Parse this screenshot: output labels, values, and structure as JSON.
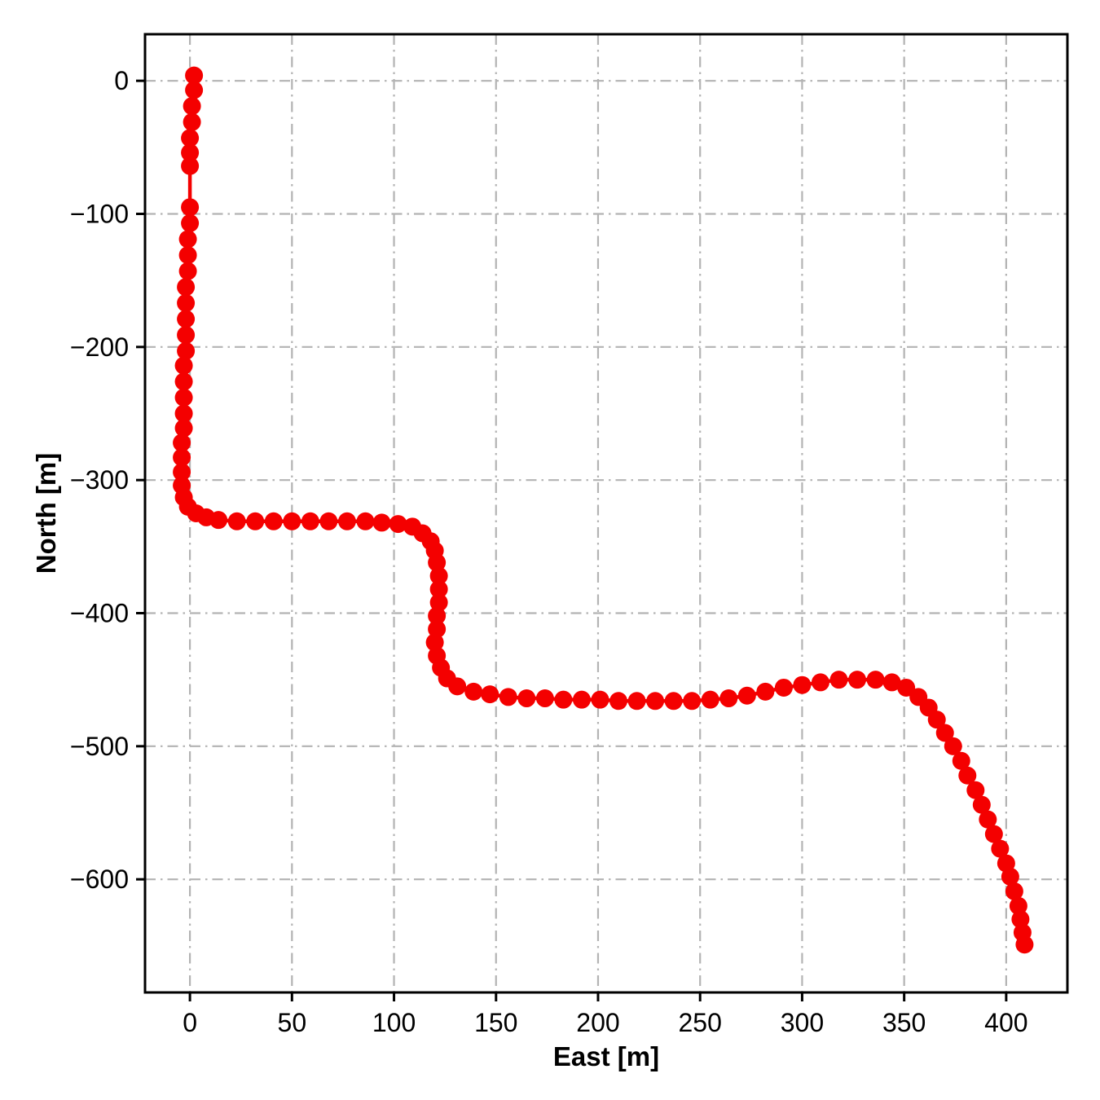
{
  "chart_data": {
    "type": "scatter",
    "title": "",
    "xlabel": "East [m]",
    "ylabel": "North [m]",
    "xlim": [
      -22,
      430
    ],
    "ylim": [
      -685,
      35
    ],
    "xticks": [
      0,
      50,
      100,
      150,
      200,
      250,
      300,
      350,
      400
    ],
    "yticks": [
      0,
      -100,
      -200,
      -300,
      -400,
      -500,
      -600
    ],
    "grid": true,
    "grid_style": "dashdot",
    "grid_color": "#b3b3b3",
    "marker_color": "#f40000",
    "line_color": "#f40000",
    "marker_radius": 11,
    "line_width": 4.5,
    "legend": "none",
    "points": [
      [
        2,
        4
      ],
      [
        2,
        -7
      ],
      [
        1,
        -19
      ],
      [
        1,
        -31
      ],
      [
        0,
        -43
      ],
      [
        0,
        -54
      ],
      [
        0,
        -64
      ],
      [
        0,
        -95
      ],
      [
        0,
        -107
      ],
      [
        -1,
        -119
      ],
      [
        -1,
        -131
      ],
      [
        -1,
        -143
      ],
      [
        -2,
        -155
      ],
      [
        -2,
        -167
      ],
      [
        -2,
        -179
      ],
      [
        -2,
        -191
      ],
      [
        -2,
        -203
      ],
      [
        -3,
        -214
      ],
      [
        -3,
        -226
      ],
      [
        -3,
        -238
      ],
      [
        -3,
        -250
      ],
      [
        -3,
        -261
      ],
      [
        -4,
        -272
      ],
      [
        -4,
        -283
      ],
      [
        -4,
        -294
      ],
      [
        -4,
        -304
      ],
      [
        -3,
        -313
      ],
      [
        -1,
        -320
      ],
      [
        3,
        -325
      ],
      [
        8,
        -328
      ],
      [
        14,
        -330
      ],
      [
        23,
        -331
      ],
      [
        32,
        -331
      ],
      [
        41,
        -331
      ],
      [
        50,
        -331
      ],
      [
        59,
        -331
      ],
      [
        68,
        -331
      ],
      [
        77,
        -331
      ],
      [
        86,
        -331
      ],
      [
        94,
        -332
      ],
      [
        102,
        -333
      ],
      [
        109,
        -335
      ],
      [
        114,
        -340
      ],
      [
        118,
        -346
      ],
      [
        120,
        -353
      ],
      [
        121,
        -362
      ],
      [
        122,
        -372
      ],
      [
        122,
        -382
      ],
      [
        122,
        -392
      ],
      [
        121,
        -402
      ],
      [
        121,
        -412
      ],
      [
        120,
        -422
      ],
      [
        121,
        -432
      ],
      [
        123,
        -441
      ],
      [
        126,
        -449
      ],
      [
        131,
        -455
      ],
      [
        139,
        -459
      ],
      [
        147,
        -461
      ],
      [
        156,
        -463
      ],
      [
        165,
        -464
      ],
      [
        174,
        -464
      ],
      [
        183,
        -465
      ],
      [
        192,
        -465
      ],
      [
        201,
        -465
      ],
      [
        210,
        -466
      ],
      [
        219,
        -466
      ],
      [
        228,
        -466
      ],
      [
        237,
        -466
      ],
      [
        246,
        -466
      ],
      [
        255,
        -465
      ],
      [
        264,
        -464
      ],
      [
        273,
        -462
      ],
      [
        282,
        -459
      ],
      [
        291,
        -456
      ],
      [
        300,
        -454
      ],
      [
        309,
        -452
      ],
      [
        318,
        -450
      ],
      [
        327,
        -450
      ],
      [
        336,
        -450
      ],
      [
        344,
        -452
      ],
      [
        351,
        -456
      ],
      [
        357,
        -463
      ],
      [
        362,
        -471
      ],
      [
        366,
        -480
      ],
      [
        370,
        -490
      ],
      [
        374,
        -500
      ],
      [
        378,
        -511
      ],
      [
        381,
        -522
      ],
      [
        385,
        -533
      ],
      [
        388,
        -544
      ],
      [
        391,
        -555
      ],
      [
        394,
        -566
      ],
      [
        397,
        -577
      ],
      [
        400,
        -588
      ],
      [
        402,
        -598
      ],
      [
        404,
        -609
      ],
      [
        406,
        -620
      ],
      [
        407,
        -630
      ],
      [
        408,
        -640
      ],
      [
        409,
        -649
      ]
    ]
  }
}
